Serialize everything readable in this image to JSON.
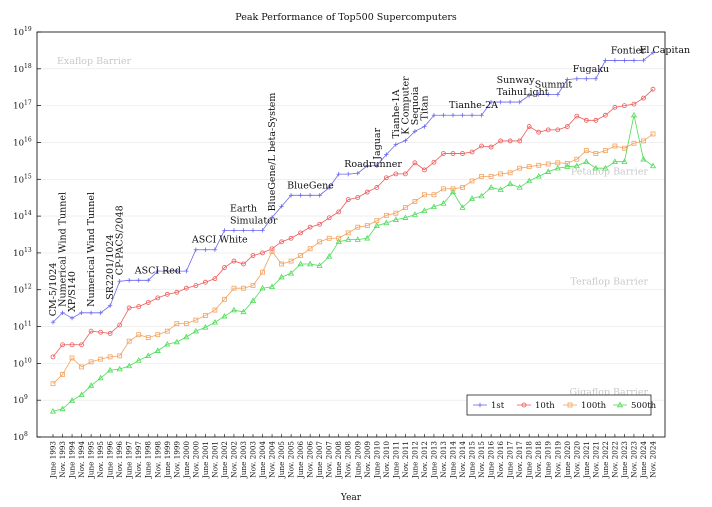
{
  "chart_data": {
    "type": "line",
    "title": "Peak Performance of Top500 Supercomputers",
    "xlabel": "Year",
    "ylabel": "",
    "yscale": "log",
    "ylim": [
      100000000,
      10000000000000000000
    ],
    "yticks": [
      {
        "value": 100000000,
        "mantissa": "10",
        "exp": "8"
      },
      {
        "value": 1000000000,
        "mantissa": "10",
        "exp": "9"
      },
      {
        "value": 10000000000,
        "mantissa": "10",
        "exp": "10"
      },
      {
        "value": 100000000000,
        "mantissa": "10",
        "exp": "11"
      },
      {
        "value": 1000000000000,
        "mantissa": "10",
        "exp": "12"
      },
      {
        "value": 10000000000000,
        "mantissa": "10",
        "exp": "13"
      },
      {
        "value": 100000000000000,
        "mantissa": "10",
        "exp": "14"
      },
      {
        "value": 1000000000000000,
        "mantissa": "10",
        "exp": "15"
      },
      {
        "value": 10000000000000000,
        "mantissa": "10",
        "exp": "16"
      },
      {
        "value": 100000000000000000,
        "mantissa": "10",
        "exp": "17"
      },
      {
        "value": 1000000000000000000,
        "mantissa": "10",
        "exp": "18"
      },
      {
        "value": 10000000000000000000,
        "mantissa": "10",
        "exp": "19"
      }
    ],
    "grid": "horizontal",
    "legend": "bottom-right",
    "categories": [
      "June 1993",
      "Nov. 1993",
      "June 1994",
      "Nov. 1994",
      "June 1995",
      "Nov. 1995",
      "June 1996",
      "Nov. 1996",
      "June 1997",
      "Nov. 1997",
      "June 1998",
      "Nov. 1998",
      "June 1999",
      "Nov. 1999",
      "June 2000",
      "Nov. 2000",
      "June 2001",
      "Nov. 2001",
      "June 2002",
      "Nov. 2002",
      "June 2003",
      "Nov. 2003",
      "June 2004",
      "Nov. 2004",
      "June 2005",
      "Nov. 2005",
      "June 2006",
      "Nov. 2006",
      "June 2007",
      "Nov. 2007",
      "June 2008",
      "Nov. 2008",
      "June 2009",
      "Nov. 2009",
      "June 2010",
      "Nov. 2010",
      "June 2011",
      "Nov. 2011",
      "June 2012",
      "Nov. 2012",
      "June 2013",
      "Nov. 2013",
      "June 2014",
      "Nov. 2014",
      "June 2015",
      "Nov. 2015",
      "June 2016",
      "Nov. 2016",
      "June 2017",
      "Nov. 2017",
      "June 2018",
      "Nov. 2018",
      "June 2019",
      "Nov. 2019",
      "June 2020",
      "Nov. 2020",
      "June 2021",
      "Nov. 2021",
      "June 2022",
      "Nov. 2022",
      "June 2023",
      "Nov. 2023",
      "June 2024",
      "Nov. 2024"
    ],
    "series": [
      {
        "name": "1st",
        "color": "#6a6aee",
        "marker": "plus",
        "values": [
          131000000000.0,
          236000000000.0,
          170000000000.0,
          236000000000.0,
          236000000000.0,
          236000000000.0,
          368000000000.0,
          1700000000000.0,
          1800000000000.0,
          1800000000000.0,
          1800000000000.0,
          3200000000000.0,
          3200000000000.0,
          3200000000000.0,
          3200000000000.0,
          12200000000000.0,
          12200000000000.0,
          12200000000000.0,
          41000000000000.0,
          41000000000000.0,
          41000000000000.0,
          41000000000000.0,
          41000000000000.0,
          92000000000000.0,
          184000000000000.0,
          367000000000000.0,
          367000000000000.0,
          367000000000000.0,
          367000000000000.0,
          596000000000000.0,
          1380000000000000.0,
          1380000000000000.0,
          1460000000000000.0,
          2330000000000000.0,
          2330000000000000.0,
          4700000000000000.0,
          8780000000000000.0,
          1.12e+16,
          2.01e+16,
          2.71e+16,
          5.49e+16,
          5.49e+16,
          5.49e+16,
          5.49e+16,
          5.49e+16,
          5.49e+16,
          1.25e+17,
          1.25e+17,
          1.25e+17,
          1.25e+17,
          1.88e+17,
          2.01e+17,
          2.01e+17,
          2.01e+17,
          5.14e+17,
          5.37e+17,
          5.37e+17,
          5.37e+17,
          1.69e+18,
          1.69e+18,
          1.69e+18,
          1.69e+18,
          1.71e+18,
          2.75e+18
        ]
      },
      {
        "name": "10th",
        "color": "#ee5a5a",
        "marker": "circle",
        "values": [
          15000000000.0,
          32000000000.0,
          32000000000.0,
          32000000000.0,
          75000000000.0,
          70000000000.0,
          65000000000.0,
          110000000000.0,
          320000000000.0,
          350000000000.0,
          450000000000.0,
          600000000000.0,
          750000000000.0,
          850000000000.0,
          1100000000000.0,
          1300000000000.0,
          1600000000000.0,
          2000000000000.0,
          4000000000000.0,
          6000000000000.0,
          5000000000000.0,
          8500000000000.0,
          10000000000000.0,
          13000000000000.0,
          20000000000000.0,
          25000000000000.0,
          35000000000000.0,
          50000000000000.0,
          60000000000000.0,
          90000000000000.0,
          130000000000000.0,
          280000000000000.0,
          320000000000000.0,
          450000000000000.0,
          600000000000000.0,
          1100000000000000.0,
          1400000000000000.0,
          1400000000000000.0,
          2800000000000000.0,
          1800000000000000.0,
          2900000000000000.0,
          5000000000000000.0,
          5000000000000000.0,
          5000000000000000.0,
          5500000000000000.0,
          8000000000000000.0,
          7500000000000000.0,
          1.1e+16,
          1.1e+16,
          1.1e+16,
          2.7e+16,
          1.9e+16,
          2.2e+16,
          2.2e+16,
          2.7e+16,
          5.2e+16,
          4e+16,
          4e+16,
          5.5e+16,
          9e+16,
          1e+17,
          1.1e+17,
          1.6e+17,
          2.8e+17
        ]
      },
      {
        "name": "100th",
        "color": "#f3a25e",
        "marker": "square",
        "values": [
          2800000000.0,
          5000000000.0,
          14000000000.0,
          8000000000.0,
          11000000000.0,
          13000000000.0,
          15000000000.0,
          16000000000.0,
          40000000000.0,
          60000000000.0,
          50000000000.0,
          60000000000.0,
          75000000000.0,
          120000000000.0,
          120000000000.0,
          150000000000.0,
          200000000000.0,
          280000000000.0,
          550000000000.0,
          1100000000000.0,
          1100000000000.0,
          1300000000000.0,
          3000000000000.0,
          11000000000000.0,
          5000000000000.0,
          6000000000000.0,
          8500000000000.0,
          13000000000000.0,
          20000000000000.0,
          25000000000000.0,
          25000000000000.0,
          35000000000000.0,
          50000000000000.0,
          55000000000000.0,
          75000000000000.0,
          105000000000000.0,
          120000000000000.0,
          170000000000000.0,
          250000000000000.0,
          380000000000000.0,
          380000000000000.0,
          550000000000000.0,
          550000000000000.0,
          600000000000000.0,
          900000000000000.0,
          1200000000000000.0,
          1200000000000000.0,
          1400000000000000.0,
          1500000000000000.0,
          2000000000000000.0,
          2200000000000000.0,
          2400000000000000.0,
          2600000000000000.0,
          2800000000000000.0,
          2700000000000000.0,
          3500000000000000.0,
          6000000000000000.0,
          5000000000000000.0,
          6000000000000000.0,
          8000000000000000.0,
          7000000000000000.0,
          9500000000000000.0,
          1.1e+16,
          1.7e+16
        ]
      },
      {
        "name": "500th",
        "color": "#4ddc58",
        "marker": "triangle",
        "values": [
          500000000.0,
          580000000.0,
          980000000.0,
          1400000000.0,
          2500000000.0,
          4000000000.0,
          6500000000.0,
          7000000000.0,
          8500000000.0,
          12000000000.0,
          16000000000.0,
          22000000000.0,
          33000000000.0,
          38000000000.0,
          52000000000.0,
          75000000000.0,
          95000000000.0,
          130000000000.0,
          190000000000.0,
          280000000000.0,
          250000000000.0,
          500000000000.0,
          1100000000000.0,
          1200000000000.0,
          2200000000000.0,
          2800000000000.0,
          5000000000000.0,
          5000000000000.0,
          4500000000000.0,
          8000000000000.0,
          20000000000000.0,
          23000000000000.0,
          23000000000000.0,
          25000000000000.0,
          55000000000000.0,
          65000000000000.0,
          80000000000000.0,
          90000000000000.0,
          110000000000000.0,
          140000000000000.0,
          180000000000000.0,
          220000000000000.0,
          450000000000000.0,
          170000000000000.0,
          300000000000000.0,
          350000000000000.0,
          600000000000000.0,
          520000000000000.0,
          750000000000000.0,
          600000000000000.0,
          900000000000000.0,
          1200000000000000.0,
          1600000000000000.0,
          2000000000000000.0,
          2200000000000000.0,
          2300000000000000.0,
          3000000000000000.0,
          2000000000000000.0,
          2000000000000000.0,
          3000000000000000.0,
          3000000000000000.0,
          5.5e+16,
          3500000000000000.0,
          2300000000000000.0
        ]
      }
    ],
    "barriers": [
      {
        "label": "Exaflop Barrier",
        "value": 1e+18
      },
      {
        "label": "Petaflop Barrier",
        "value": 1000000000000000.0
      },
      {
        "label": "Teraflop Barrier",
        "value": 1000000000000.0
      },
      {
        "label": "Gigaflop Barrier",
        "value": 1000000000.0
      }
    ],
    "annotations": [
      {
        "text": "CM-5/1024",
        "index": 0,
        "rotate": true
      },
      {
        "text": "Numerical Wind Tunnel",
        "index": 1,
        "rotate": true
      },
      {
        "text": "XP/S140",
        "index": 2,
        "rotate": true
      },
      {
        "text": "Numerical Wind Tunnel",
        "index": 4,
        "rotate": true
      },
      {
        "text": "SR2201/1024",
        "index": 6,
        "rotate": true
      },
      {
        "text": "CP-PACS/2048",
        "index": 7,
        "rotate": true
      },
      {
        "text": "ASCI Red",
        "index": 9,
        "rotate": false
      },
      {
        "text": "ASCI White",
        "index": 15,
        "rotate": false
      },
      {
        "text": "Earth",
        "index": 19,
        "rotate": false,
        "line": 0
      },
      {
        "text": "Simulator",
        "index": 19,
        "rotate": false,
        "line": 1
      },
      {
        "text": "BlueGene/L beta-System",
        "index": 23,
        "rotate": true
      },
      {
        "text": "BlueGene",
        "index": 25,
        "rotate": false
      },
      {
        "text": "Roadrunner",
        "index": 31,
        "rotate": false
      },
      {
        "text": "Jaguar",
        "index": 34,
        "rotate": true
      },
      {
        "text": "Tianhe-1A",
        "index": 36,
        "rotate": true
      },
      {
        "text": "K Computer",
        "index": 37,
        "rotate": true
      },
      {
        "text": "Sequoia",
        "index": 38,
        "rotate": true
      },
      {
        "text": "Titan",
        "index": 39,
        "rotate": true
      },
      {
        "text": "Tianhe-2A",
        "index": 42,
        "rotate": false
      },
      {
        "text": "Sunway",
        "index": 47,
        "rotate": false,
        "line": 0
      },
      {
        "text": "TaihuLight",
        "index": 47,
        "rotate": false,
        "line": 1
      },
      {
        "text": "Summit",
        "index": 51,
        "rotate": false
      },
      {
        "text": "Fugaku",
        "index": 55,
        "rotate": false
      },
      {
        "text": "Fontier",
        "index": 59,
        "rotate": false
      },
      {
        "text": "El Capitan",
        "index": 62,
        "rotate": false
      }
    ]
  }
}
